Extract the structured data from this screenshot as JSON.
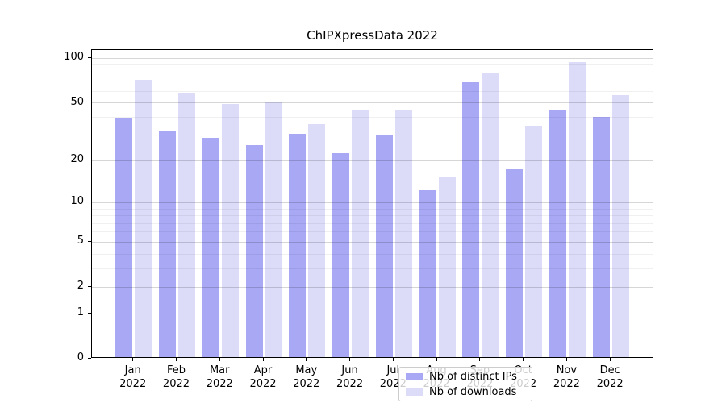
{
  "title": "ChIPXpressData 2022",
  "chart_data": {
    "type": "bar",
    "title": "ChIPXpressData 2022",
    "categories": [
      "Jan",
      "Feb",
      "Mar",
      "Apr",
      "May",
      "Jun",
      "Jul",
      "Aug",
      "Sep",
      "Oct",
      "Nov",
      "Dec"
    ],
    "year": "2022",
    "x_tick_labels": [
      "Jan 2022",
      "Feb 2022",
      "Mar 2022",
      "Apr 2022",
      "May 2022",
      "Jun 2022",
      "Jul 2022",
      "Aug 2022",
      "Sep 2022",
      "Oct 2022",
      "Nov 2022",
      "Dec 2022"
    ],
    "series": [
      {
        "name": "Nb of distinct IPs",
        "color": "#a8a8f5",
        "values": [
          38,
          31,
          28,
          25,
          30,
          22,
          29,
          12,
          67,
          17,
          43,
          39
        ]
      },
      {
        "name": "Nb of downloads",
        "color": "#dcdcf8",
        "values": [
          70,
          57,
          48,
          50,
          35,
          44,
          43,
          15,
          77,
          34,
          92,
          55
        ]
      }
    ],
    "yscale": "log1p",
    "y_ticks": [
      0,
      1,
      2,
      5,
      10,
      20,
      50,
      100
    ],
    "y_minor_gridlines": [
      3,
      4,
      6,
      7,
      8,
      9,
      30,
      40,
      60,
      70,
      80,
      90
    ],
    "ylim": [
      0,
      114
    ],
    "grid": true,
    "legend_position": "lower center"
  },
  "legend": {
    "items": [
      {
        "label": "Nb of distinct IPs",
        "color": "#a8a8f5"
      },
      {
        "label": "Nb of downloads",
        "color": "#dcdcf8"
      }
    ]
  }
}
